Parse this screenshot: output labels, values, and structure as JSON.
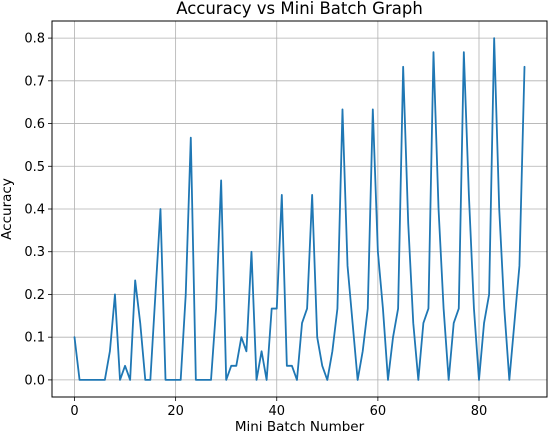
{
  "chart_data": {
    "type": "line",
    "title": "Accuracy vs Mini Batch Graph",
    "xlabel": "Mini Batch Number",
    "ylabel": "Accuracy",
    "xlim": [
      -4.45,
      93.45
    ],
    "ylim": [
      -0.04,
      0.84
    ],
    "xticks": [
      0,
      20,
      40,
      60,
      80
    ],
    "yticks": [
      0.0,
      0.1,
      0.2,
      0.3,
      0.4,
      0.5,
      0.6,
      0.7,
      0.8
    ],
    "ytick_labels": [
      "0.0",
      "0.1",
      "0.2",
      "0.3",
      "0.4",
      "0.5",
      "0.6",
      "0.7",
      "0.8"
    ],
    "grid": true,
    "series": [
      {
        "color": "#1f77b4",
        "x": [
          0,
          1,
          2,
          3,
          4,
          5,
          6,
          7,
          8,
          9,
          10,
          11,
          12,
          13,
          14,
          15,
          16,
          17,
          18,
          19,
          20,
          21,
          22,
          23,
          24,
          25,
          26,
          27,
          28,
          29,
          30,
          31,
          32,
          33,
          34,
          35,
          36,
          37,
          38,
          39,
          40,
          41,
          42,
          43,
          44,
          45,
          46,
          47,
          48,
          49,
          50,
          51,
          52,
          53,
          54,
          55,
          56,
          57,
          58,
          59,
          60,
          61,
          62,
          63,
          64,
          65,
          66,
          67,
          68,
          69,
          70,
          71,
          72,
          73,
          74,
          75,
          76,
          77,
          78,
          79,
          80,
          81,
          82,
          83,
          84,
          85,
          86,
          87,
          88,
          89
        ],
        "y": [
          0.1,
          0,
          0,
          0,
          0,
          0,
          0,
          0.067,
          0.2,
          0,
          0.033,
          0,
          0.233,
          0.133,
          0,
          0,
          0.2,
          0.4,
          0,
          0,
          0,
          0,
          0.2,
          0.567,
          0,
          0,
          0,
          0,
          0.167,
          0.467,
          0,
          0.033,
          0.033,
          0.1,
          0.067,
          0.3,
          0,
          0.067,
          0,
          0.167,
          0.167,
          0.433,
          0.033,
          0.033,
          0,
          0.133,
          0.167,
          0.433,
          0.1,
          0.033,
          0,
          0.067,
          0.167,
          0.633,
          0.267,
          0.133,
          0,
          0.067,
          0.167,
          0.633,
          0.3,
          0.167,
          0,
          0.1,
          0.167,
          0.733,
          0.367,
          0.133,
          0,
          0.133,
          0.167,
          0.767,
          0.4,
          0.167,
          0,
          0.133,
          0.167,
          0.767,
          0.433,
          0.167,
          0,
          0.133,
          0.2,
          0.8,
          0.4,
          0.167,
          0,
          0.133,
          0.267,
          0.733
        ]
      }
    ]
  }
}
